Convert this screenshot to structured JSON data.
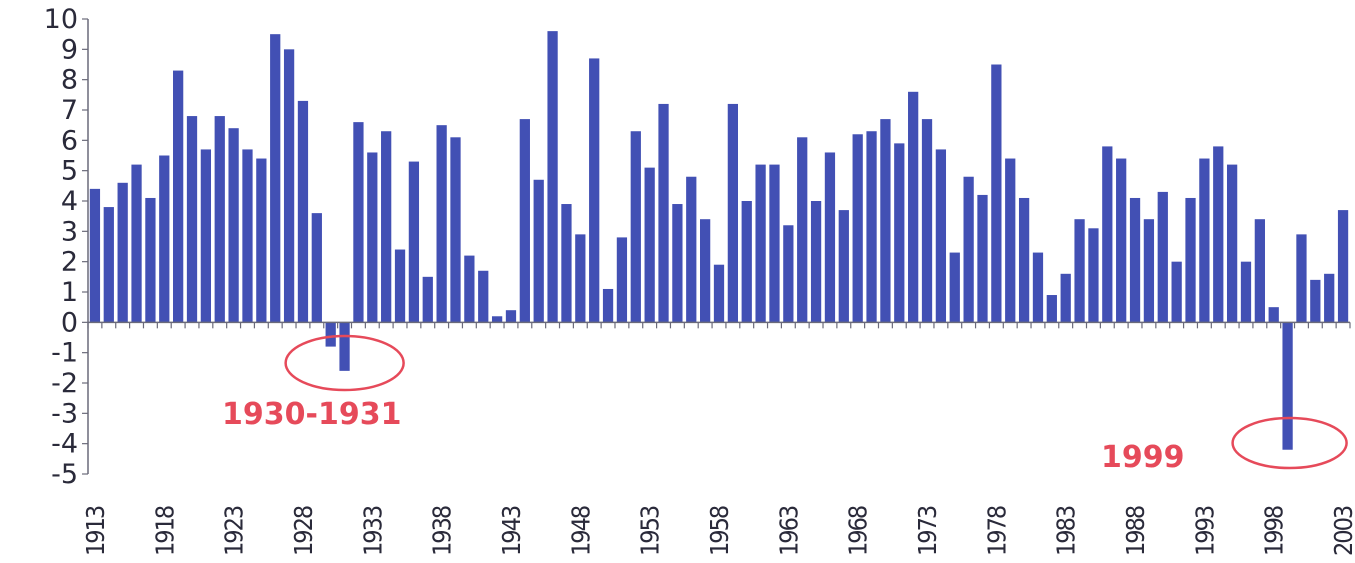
{
  "chart_data": {
    "type": "bar",
    "title": "",
    "xlabel": "",
    "ylabel": "",
    "ylim": [
      -5,
      10
    ],
    "yticks": [
      "10",
      "9",
      "8",
      "7",
      "6",
      "5",
      "4",
      "3",
      "2",
      "1",
      "0",
      "-1",
      "-2",
      "-3",
      "-4",
      "-5"
    ],
    "xtick_labels": [
      "1913",
      "1918",
      "1923",
      "1928",
      "1933",
      "1938",
      "1943",
      "1948",
      "1953",
      "1958",
      "1963",
      "1968",
      "1973",
      "1978",
      "1983",
      "1988",
      "1993",
      "1998",
      "2003"
    ],
    "categories": [
      "1913",
      "1914",
      "1915",
      "1916",
      "1917",
      "1918",
      "1919",
      "1920",
      "1921",
      "1922",
      "1923",
      "1924",
      "1925",
      "1926",
      "1927",
      "1928",
      "1929",
      "1930",
      "1931",
      "1932",
      "1933",
      "1934",
      "1935",
      "1936",
      "1937",
      "1938",
      "1939",
      "1940",
      "1941",
      "1942",
      "1943",
      "1944",
      "1945",
      "1946",
      "1947",
      "1948",
      "1949",
      "1950",
      "1951",
      "1952",
      "1953",
      "1954",
      "1955",
      "1956",
      "1957",
      "1958",
      "1959",
      "1960",
      "1961",
      "1962",
      "1963",
      "1964",
      "1965",
      "1966",
      "1967",
      "1968",
      "1969",
      "1970",
      "1971",
      "1972",
      "1973",
      "1974",
      "1975",
      "1976",
      "1977",
      "1978",
      "1979",
      "1980",
      "1981",
      "1982",
      "1983",
      "1984",
      "1985",
      "1986",
      "1987",
      "1988",
      "1989",
      "1990",
      "1991",
      "1992",
      "1993",
      "1994",
      "1995",
      "1996",
      "1997",
      "1998",
      "1999",
      "2000",
      "2001",
      "2002",
      "2003"
    ],
    "values": [
      4.4,
      3.8,
      4.6,
      5.2,
      4.1,
      5.5,
      8.3,
      6.8,
      5.7,
      6.8,
      6.4,
      5.7,
      5.4,
      9.5,
      9.0,
      7.3,
      3.6,
      -0.8,
      -1.6,
      6.6,
      5.6,
      6.3,
      2.4,
      5.3,
      1.5,
      6.5,
      6.1,
      2.2,
      1.7,
      0.2,
      0.4,
      6.7,
      4.7,
      9.6,
      3.9,
      2.9,
      8.7,
      1.1,
      2.8,
      6.3,
      5.1,
      7.2,
      3.9,
      4.8,
      3.4,
      1.9,
      7.2,
      4.0,
      5.2,
      5.2,
      3.2,
      6.1,
      4.0,
      5.6,
      3.7,
      6.2,
      6.3,
      6.7,
      5.9,
      7.6,
      6.7,
      5.7,
      2.3,
      4.8,
      4.2,
      8.5,
      5.4,
      4.1,
      2.3,
      0.9,
      1.6,
      3.4,
      3.1,
      5.8,
      5.4,
      4.1,
      3.4,
      4.3,
      2.0,
      4.1,
      5.4,
      5.8,
      5.2,
      2.0,
      3.4,
      0.5,
      -4.2,
      2.9,
      1.4,
      1.6,
      3.7
    ],
    "bar_color": "#4250b4",
    "annotations": [
      {
        "text": "1930-1931",
        "years": [
          "1930",
          "1931"
        ]
      },
      {
        "text": "1999",
        "years": [
          "1999"
        ]
      }
    ],
    "annotation_color": "#e64a5a",
    "grid": false
  }
}
